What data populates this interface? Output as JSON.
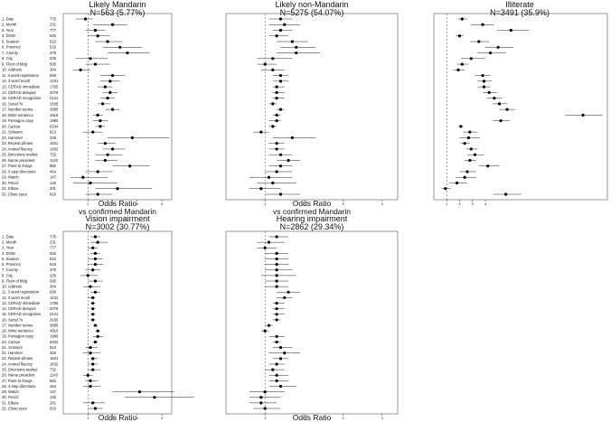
{
  "charts": [
    {
      "type": "scatter",
      "title": "Likely Mandarin",
      "subtitle": "N=563 (5.77%)",
      "xlabel": "Odds Ratio",
      "xlabel2": "vs confirmed Mandarin",
      "xlim": [
        0,
        4.4
      ],
      "xticks": [
        "1",
        "2",
        "3",
        "4"
      ],
      "show_labels": true,
      "points": [
        {
          "label": "1. Date",
          "n": "775",
          "or": 0.9,
          "lo": 0.5,
          "hi": 1.2
        },
        {
          "label": "2. Month",
          "n": "231",
          "or": 2.0,
          "lo": 1.2,
          "hi": 2.6
        },
        {
          "label": "3. Year",
          "n": "777",
          "or": 1.3,
          "lo": 0.9,
          "hi": 1.7
        },
        {
          "label": "4. DOW",
          "n": "925",
          "or": 1.4,
          "lo": 1.0,
          "hi": 1.9
        },
        {
          "label": "5. Season",
          "n": "622",
          "or": 1.8,
          "lo": 1.3,
          "hi": 2.4
        },
        {
          "label": "6. Province",
          "n": "519",
          "or": 2.3,
          "lo": 1.6,
          "hi": 3.2
        },
        {
          "label": "7. County",
          "n": "375",
          "or": 2.6,
          "lo": 1.8,
          "hi": 3.5
        },
        {
          "label": "8. City",
          "n": "205",
          "or": 1.1,
          "lo": 0.5,
          "hi": 1.8
        },
        {
          "label": "9. Floor of bldg",
          "n": "585",
          "or": 1.3,
          "lo": 0.9,
          "hi": 1.9
        },
        {
          "label": "10. Address",
          "n": "304",
          "or": 0.7,
          "lo": 0.4,
          "hi": 1.1
        },
        {
          "label": "11. 3 word registration",
          "n": "690",
          "or": 2.0,
          "lo": 1.5,
          "hi": 2.5
        },
        {
          "label": "12. 3 word recall",
          "n": "1241",
          "or": 1.9,
          "lo": 1.5,
          "hi": 2.3
        },
        {
          "label": "13. CERAD immediate",
          "n": "1765",
          "or": 1.7,
          "lo": 1.4,
          "hi": 2.0
        },
        {
          "label": "14. CERAD delayed",
          "n": "2079",
          "or": 1.9,
          "lo": 1.6,
          "hi": 2.2
        },
        {
          "label": "15. CERAD recognition",
          "n": "2141",
          "or": 1.8,
          "lo": 1.5,
          "hi": 2.1
        },
        {
          "label": "16. Serial 7s",
          "n": "3165",
          "or": 1.6,
          "lo": 1.4,
          "hi": 1.9
        },
        {
          "label": "17. Number series",
          "n": "3685",
          "or": 2.0,
          "lo": 1.7,
          "hi": 2.3
        },
        {
          "label": "18. Write sentence",
          "n": "4919",
          "or": 1.4,
          "lo": 1.2,
          "hi": 1.6
        },
        {
          "label": "19. Pentagon copy",
          "n": "1980",
          "or": 1.5,
          "lo": 1.2,
          "hi": 1.8
        },
        {
          "label": "20. Cactus",
          "n": "6334",
          "or": 1.5,
          "lo": 1.3,
          "hi": 1.7
        },
        {
          "label": "21. Scissors",
          "n": "913",
          "or": 1.2,
          "lo": 0.8,
          "hi": 1.6
        },
        {
          "label": "22. Hammer",
          "n": "326",
          "or": 2.8,
          "lo": 1.8,
          "hi": 4.3
        },
        {
          "label": "23. Repeat phrase",
          "n": "1631",
          "or": 1.7,
          "lo": 1.4,
          "hi": 2.1
        },
        {
          "label": "24. Animal fluency",
          "n": "1632",
          "or": 2.0,
          "lo": 1.6,
          "hi": 2.5
        },
        {
          "label": "25. Directions market",
          "n": "732",
          "or": 1.8,
          "lo": 1.3,
          "hi": 2.4
        },
        {
          "label": "26. Name president",
          "n": "1143",
          "or": 1.7,
          "lo": 1.3,
          "hi": 2.2
        },
        {
          "label": "27. Point to things",
          "n": "862",
          "or": 2.7,
          "lo": 2.0,
          "hi": 3.5
        },
        {
          "label": "28. 3 step directions",
          "n": "454",
          "or": 1.4,
          "lo": 0.9,
          "hi": 2.0
        },
        {
          "label": "29. Watch",
          "n": "147",
          "or": 0.8,
          "lo": 0.3,
          "hi": 1.8
        },
        {
          "label": "30. Pencil",
          "n": "146",
          "or": 1.1,
          "lo": 0.4,
          "hi": 2.2
        },
        {
          "label": "31. Elbow",
          "n": "201",
          "or": 2.2,
          "lo": 1.3,
          "hi": 3.6
        },
        {
          "label": "32. Close eyes",
          "n": "816",
          "or": 1.4,
          "lo": 0.9,
          "hi": 2.0
        }
      ]
    },
    {
      "type": "scatter",
      "title": "Likely non-Mandarin",
      "subtitle": "N=5275 (54.07%)",
      "xlabel": "Odds Ratio",
      "xlabel2": "vs confirmed Mandarin",
      "xlim": [
        0,
        4.4
      ],
      "xticks": [
        "1",
        "2",
        "3",
        "4"
      ],
      "show_labels": false,
      "points": [
        {
          "or": 1.4,
          "lo": 1.1,
          "hi": 1.7
        },
        {
          "or": 1.5,
          "lo": 1.1,
          "hi": 1.9
        },
        {
          "or": 1.4,
          "lo": 1.2,
          "hi": 1.7
        },
        {
          "or": 1.3,
          "lo": 1.1,
          "hi": 1.6
        },
        {
          "or": 1.7,
          "lo": 1.3,
          "hi": 2.1
        },
        {
          "or": 1.8,
          "lo": 1.4,
          "hi": 2.3
        },
        {
          "or": 1.8,
          "lo": 1.3,
          "hi": 2.4
        },
        {
          "or": 1.2,
          "lo": 0.8,
          "hi": 1.7
        },
        {
          "or": 1.0,
          "lo": 0.8,
          "hi": 1.3
        },
        {
          "or": 1.2,
          "lo": 0.9,
          "hi": 1.5
        },
        {
          "or": 1.4,
          "lo": 1.2,
          "hi": 1.6
        },
        {
          "or": 1.4,
          "lo": 1.2,
          "hi": 1.6
        },
        {
          "or": 1.3,
          "lo": 1.2,
          "hi": 1.5
        },
        {
          "or": 1.3,
          "lo": 1.2,
          "hi": 1.5
        },
        {
          "or": 1.3,
          "lo": 1.2,
          "hi": 1.5
        },
        {
          "or": 1.2,
          "lo": 1.1,
          "hi": 1.3
        },
        {
          "or": 1.4,
          "lo": 1.3,
          "hi": 1.5
        },
        {
          "or": 1.3,
          "lo": 1.2,
          "hi": 1.4
        },
        {
          "or": 1.3,
          "lo": 1.1,
          "hi": 1.4
        },
        {
          "or": 1.2,
          "lo": 1.1,
          "hi": 1.3
        },
        {
          "or": 0.9,
          "lo": 0.7,
          "hi": 1.1
        },
        {
          "or": 1.7,
          "lo": 1.2,
          "hi": 2.3
        },
        {
          "or": 1.3,
          "lo": 1.1,
          "hi": 1.5
        },
        {
          "or": 1.3,
          "lo": 1.1,
          "hi": 1.5
        },
        {
          "or": 1.4,
          "lo": 1.1,
          "hi": 1.7
        },
        {
          "or": 1.6,
          "lo": 1.3,
          "hi": 1.9
        },
        {
          "or": 1.4,
          "lo": 1.1,
          "hi": 1.7
        },
        {
          "or": 1.3,
          "lo": 1.0,
          "hi": 1.7
        },
        {
          "or": 1.1,
          "lo": 0.6,
          "hi": 1.7
        },
        {
          "or": 1.2,
          "lo": 0.8,
          "hi": 1.8
        },
        {
          "or": 0.9,
          "lo": 0.6,
          "hi": 1.4
        },
        {
          "or": 1.4,
          "lo": 1.0,
          "hi": 1.9
        }
      ]
    },
    {
      "type": "scatter",
      "title": "Illiterate",
      "subtitle": "N=3491 (35.9%)",
      "xlabel": "",
      "xlabel2": "",
      "xlim": [
        0,
        13.5
      ],
      "xticks": [
        "1",
        "2",
        "3",
        "4"
      ],
      "show_labels": false,
      "points": [
        {
          "or": 2.2,
          "lo": 1.9,
          "hi": 2.6
        },
        {
          "or": 3.8,
          "lo": 2.9,
          "hi": 4.7
        },
        {
          "or": 6.0,
          "lo": 4.9,
          "hi": 7.4
        },
        {
          "or": 2.0,
          "lo": 1.7,
          "hi": 2.3
        },
        {
          "or": 3.5,
          "lo": 2.8,
          "hi": 4.3
        },
        {
          "or": 5.0,
          "lo": 4.0,
          "hi": 6.2
        },
        {
          "or": 4.4,
          "lo": 3.4,
          "hi": 5.6
        },
        {
          "or": 2.9,
          "lo": 2.1,
          "hi": 4.0
        },
        {
          "or": 2.2,
          "lo": 1.8,
          "hi": 2.7
        },
        {
          "or": 1.9,
          "lo": 1.5,
          "hi": 2.4
        },
        {
          "or": 3.8,
          "lo": 3.2,
          "hi": 4.4
        },
        {
          "or": 3.9,
          "lo": 3.4,
          "hi": 4.5
        },
        {
          "or": 3.9,
          "lo": 3.4,
          "hi": 4.4
        },
        {
          "or": 4.3,
          "lo": 3.8,
          "hi": 4.9
        },
        {
          "or": 4.7,
          "lo": 4.1,
          "hi": 5.3
        },
        {
          "or": 5.1,
          "lo": 4.6,
          "hi": 5.7
        },
        {
          "or": 5.7,
          "lo": 5.1,
          "hi": 6.3
        },
        {
          "or": 11.6,
          "lo": 10.2,
          "hi": 13.1
        },
        {
          "or": 5.2,
          "lo": 4.6,
          "hi": 5.9
        },
        {
          "or": 2.1,
          "lo": 1.9,
          "hi": 2.3
        },
        {
          "or": 2.8,
          "lo": 2.3,
          "hi": 3.4
        },
        {
          "or": 2.7,
          "lo": 2.0,
          "hi": 3.6
        },
        {
          "or": 2.4,
          "lo": 2.1,
          "hi": 2.8
        },
        {
          "or": 2.9,
          "lo": 2.5,
          "hi": 3.4
        },
        {
          "or": 3.2,
          "lo": 2.6,
          "hi": 3.9
        },
        {
          "or": 2.8,
          "lo": 2.4,
          "hi": 3.3
        },
        {
          "or": 4.2,
          "lo": 3.5,
          "hi": 5.1
        },
        {
          "or": 2.6,
          "lo": 2.0,
          "hi": 3.3
        },
        {
          "or": 2.4,
          "lo": 1.7,
          "hi": 3.3
        },
        {
          "or": 1.8,
          "lo": 1.2,
          "hi": 2.6
        },
        {
          "or": 0.9,
          "lo": 0.6,
          "hi": 1.3
        },
        {
          "or": 5.6,
          "lo": 4.6,
          "hi": 6.8
        }
      ]
    },
    {
      "type": "scatter",
      "title": "Vision impairment",
      "subtitle": "N=3002 (30.77%)",
      "xlabel": "Odds Ratio",
      "xlabel2": "",
      "xlim": [
        0,
        4.4
      ],
      "xticks": [
        "1",
        "2",
        "3",
        "4"
      ],
      "show_labels": true,
      "points": [
        {
          "label": "1. Date",
          "n": "775",
          "or": 1.3,
          "lo": 1.1,
          "hi": 1.5
        },
        {
          "label": "2. Month",
          "n": "231",
          "or": 1.4,
          "lo": 1.1,
          "hi": 1.8
        },
        {
          "label": "3. Year",
          "n": "777",
          "or": 1.2,
          "lo": 1.0,
          "hi": 1.4
        },
        {
          "label": "4. DOW",
          "n": "925",
          "or": 1.3,
          "lo": 1.1,
          "hi": 1.5
        },
        {
          "label": "5. Season",
          "n": "622",
          "or": 1.3,
          "lo": 1.0,
          "hi": 1.6
        },
        {
          "label": "6. Province",
          "n": "519",
          "or": 1.3,
          "lo": 1.0,
          "hi": 1.6
        },
        {
          "label": "7. County",
          "n": "375",
          "or": 1.2,
          "lo": 0.9,
          "hi": 1.5
        },
        {
          "label": "8. City",
          "n": "205",
          "or": 1.0,
          "lo": 0.7,
          "hi": 1.4
        },
        {
          "label": "9. Floor of bldg",
          "n": "585",
          "or": 1.3,
          "lo": 1.0,
          "hi": 1.6
        },
        {
          "label": "10. Address",
          "n": "304",
          "or": 1.1,
          "lo": 0.8,
          "hi": 1.5
        },
        {
          "label": "11. 3 word registration",
          "n": "690",
          "or": 1.3,
          "lo": 1.1,
          "hi": 1.5
        },
        {
          "label": "12. 3 word recall",
          "n": "1241",
          "or": 1.2,
          "lo": 1.0,
          "hi": 1.3
        },
        {
          "label": "13. CERAD immediate",
          "n": "1765",
          "or": 1.2,
          "lo": 1.1,
          "hi": 1.3
        },
        {
          "label": "14. CERAD delayed",
          "n": "2079",
          "or": 1.2,
          "lo": 1.1,
          "hi": 1.3
        },
        {
          "label": "15. CERAD recognition",
          "n": "2141",
          "or": 1.2,
          "lo": 1.1,
          "hi": 1.3
        },
        {
          "label": "16. Serial 7s",
          "n": "3165",
          "or": 1.2,
          "lo": 1.1,
          "hi": 1.3
        },
        {
          "label": "17. Number series",
          "n": "3685",
          "or": 1.3,
          "lo": 1.2,
          "hi": 1.4
        },
        {
          "label": "18. Write sentence",
          "n": "4919",
          "or": 1.4,
          "lo": 1.3,
          "hi": 1.5
        },
        {
          "label": "19. Pentagon copy",
          "n": "1980",
          "or": 1.4,
          "lo": 1.2,
          "hi": 1.6
        },
        {
          "label": "20. Cactus",
          "n": "6334",
          "or": 1.3,
          "lo": 1.2,
          "hi": 1.4
        },
        {
          "label": "21. Scissors",
          "n": "913",
          "or": 1.1,
          "lo": 0.9,
          "hi": 1.4
        },
        {
          "label": "22. Hammer",
          "n": "326",
          "or": 1.1,
          "lo": 0.8,
          "hi": 1.5
        },
        {
          "label": "23. Repeat phrase",
          "n": "1631",
          "or": 1.2,
          "lo": 1.1,
          "hi": 1.4
        },
        {
          "label": "24. Animal fluency",
          "n": "1632",
          "or": 1.2,
          "lo": 1.0,
          "hi": 1.4
        },
        {
          "label": "25. Directions market",
          "n": "732",
          "or": 1.2,
          "lo": 1.0,
          "hi": 1.5
        },
        {
          "label": "26. Name president",
          "n": "1143",
          "or": 1.0,
          "lo": 0.8,
          "hi": 1.2
        },
        {
          "label": "27. Point to things",
          "n": "862",
          "or": 1.1,
          "lo": 0.9,
          "hi": 1.4
        },
        {
          "label": "28. 3 step directions",
          "n": "454",
          "or": 1.1,
          "lo": 0.8,
          "hi": 1.5
        },
        {
          "label": "29. Watch",
          "n": "147",
          "or": 3.1,
          "lo": 2.0,
          "hi": 4.5
        },
        {
          "label": "30. Pencil",
          "n": "146",
          "or": 3.7,
          "lo": 2.5,
          "hi": 5.3
        },
        {
          "label": "31. Elbow",
          "n": "201",
          "or": 1.2,
          "lo": 0.8,
          "hi": 1.7
        },
        {
          "label": "32. Close eyes",
          "n": "816",
          "or": 1.3,
          "lo": 1.0,
          "hi": 1.6
        }
      ]
    },
    {
      "type": "scatter",
      "title": "Hearing impairment",
      "subtitle": "N=2862 (29.34%)",
      "xlabel": "Odds Ratio",
      "xlabel2": "",
      "xlim": [
        0,
        4.4
      ],
      "xticks": [
        "1",
        "2",
        "3",
        "4"
      ],
      "show_labels": false,
      "points": [
        {
          "or": 1.3,
          "lo": 1.1,
          "hi": 1.6
        },
        {
          "or": 1.1,
          "lo": 0.8,
          "hi": 1.5
        },
        {
          "or": 1.0,
          "lo": 0.8,
          "hi": 1.3
        },
        {
          "or": 1.3,
          "lo": 1.0,
          "hi": 1.6
        },
        {
          "or": 1.3,
          "lo": 1.0,
          "hi": 1.6
        },
        {
          "or": 1.3,
          "lo": 1.0,
          "hi": 1.6
        },
        {
          "or": 1.3,
          "lo": 1.0,
          "hi": 1.7
        },
        {
          "or": 1.3,
          "lo": 0.9,
          "hi": 1.8
        },
        {
          "or": 1.3,
          "lo": 1.0,
          "hi": 1.6
        },
        {
          "or": 1.3,
          "lo": 1.0,
          "hi": 1.6
        },
        {
          "or": 1.6,
          "lo": 1.3,
          "hi": 1.9
        },
        {
          "or": 1.5,
          "lo": 1.3,
          "hi": 1.7
        },
        {
          "or": 1.3,
          "lo": 1.2,
          "hi": 1.5
        },
        {
          "or": 1.3,
          "lo": 1.2,
          "hi": 1.5
        },
        {
          "or": 1.3,
          "lo": 1.2,
          "hi": 1.5
        },
        {
          "or": 1.3,
          "lo": 1.2,
          "hi": 1.4
        },
        {
          "or": 1.1,
          "lo": 1.0,
          "hi": 1.2
        },
        {
          "or": 1.0,
          "lo": 0.9,
          "hi": 1.1
        },
        {
          "or": 1.3,
          "lo": 1.1,
          "hi": 1.5
        },
        {
          "or": 1.3,
          "lo": 1.2,
          "hi": 1.4
        },
        {
          "or": 1.4,
          "lo": 1.2,
          "hi": 1.7
        },
        {
          "or": 1.5,
          "lo": 1.1,
          "hi": 1.9
        },
        {
          "or": 1.4,
          "lo": 1.2,
          "hi": 1.6
        },
        {
          "or": 1.3,
          "lo": 1.1,
          "hi": 1.5
        },
        {
          "or": 1.2,
          "lo": 1.0,
          "hi": 1.5
        },
        {
          "or": 1.3,
          "lo": 1.1,
          "hi": 1.6
        },
        {
          "or": 1.3,
          "lo": 1.1,
          "hi": 1.6
        },
        {
          "or": 1.4,
          "lo": 1.1,
          "hi": 1.8
        },
        {
          "or": 1.0,
          "lo": 0.6,
          "hi": 1.5
        },
        {
          "or": 0.9,
          "lo": 0.6,
          "hi": 1.4
        },
        {
          "or": 0.9,
          "lo": 0.6,
          "hi": 1.3
        },
        {
          "or": 1.0,
          "lo": 0.7,
          "hi": 1.4
        }
      ]
    }
  ]
}
